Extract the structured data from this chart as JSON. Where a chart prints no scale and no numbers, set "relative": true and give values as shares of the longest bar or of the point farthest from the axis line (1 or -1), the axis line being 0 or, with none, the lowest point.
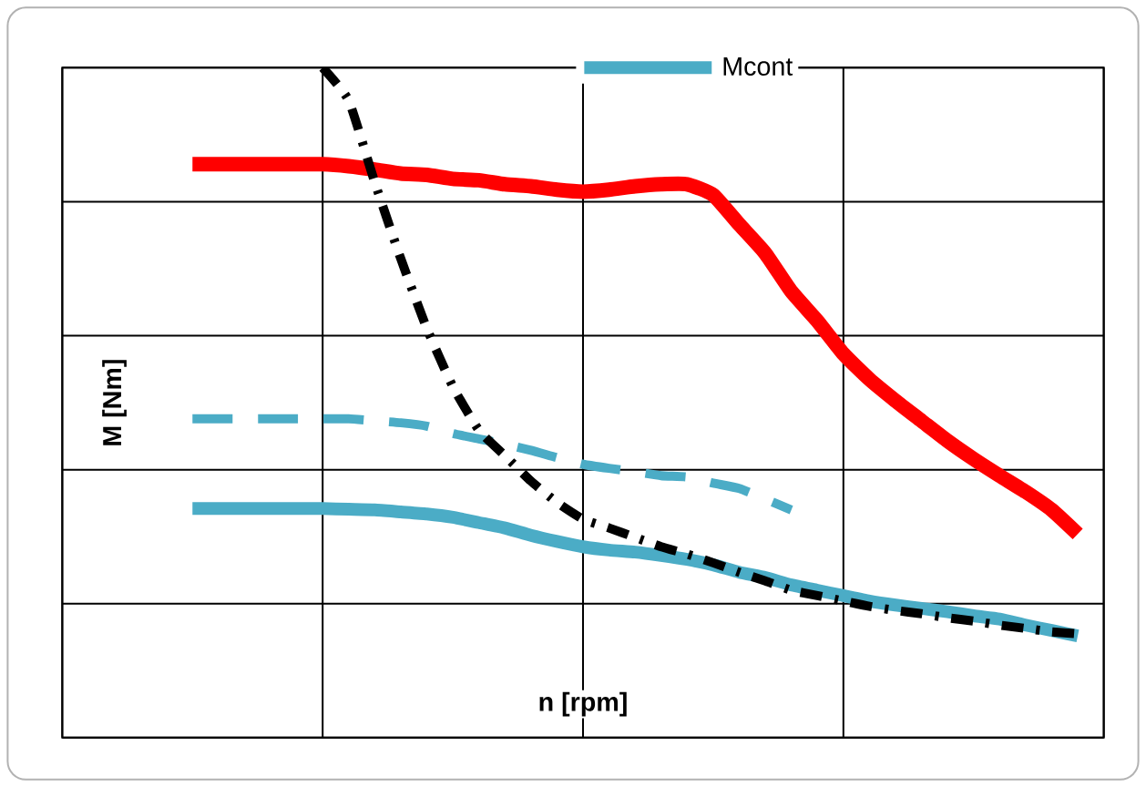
{
  "chart_data": {
    "type": "line",
    "relative": true,
    "xlabel": "n [rpm]",
    "ylabel": "M [Nm]",
    "grid": true,
    "legend": "top",
    "tick_labels": false,
    "categories": [
      null,
      null,
      null,
      null,
      null,
      null,
      null,
      null,
      null,
      null,
      null,
      null,
      null,
      null,
      null,
      null,
      null,
      null,
      null,
      null,
      null,
      null,
      null,
      null,
      null,
      null,
      null,
      null,
      null,
      null,
      null,
      null,
      null,
      null,
      null,
      null,
      null,
      null,
      null,
      null,
      null
    ],
    "series": [
      {
        "color": "#ff0000",
        "line_style": "solid",
        "values": [
          null,
          null,
          null,
          null,
          null,
          0.856,
          0.856,
          0.856,
          0.856,
          0.856,
          0.856,
          0.853,
          0.848,
          0.842,
          0.84,
          0.834,
          0.832,
          0.826,
          0.823,
          0.818,
          0.815,
          0.818,
          0.823,
          0.826,
          0.826,
          0.81,
          0.766,
          0.723,
          0.666,
          0.622,
          0.573,
          0.535,
          0.503,
          0.473,
          0.443,
          0.416,
          0.391,
          0.367,
          0.34,
          0.304,
          null
        ]
      },
      {
        "name": "Mcont",
        "color": "#4bacc6",
        "line_style": "solid",
        "values": [
          null,
          null,
          null,
          null,
          null,
          0.342,
          0.342,
          0.342,
          0.342,
          0.342,
          0.342,
          0.341,
          0.34,
          0.337,
          0.334,
          0.329,
          0.321,
          0.313,
          0.302,
          0.293,
          0.285,
          0.28,
          0.277,
          0.272,
          0.266,
          0.258,
          0.247,
          0.239,
          0.228,
          0.22,
          0.212,
          0.204,
          0.198,
          0.193,
          0.188,
          0.182,
          0.177,
          0.168,
          0.16,
          0.152,
          null
        ]
      },
      {
        "color": "#4bacc6",
        "line_style": "dashed",
        "values": [
          null,
          null,
          null,
          null,
          null,
          0.476,
          0.476,
          0.476,
          0.476,
          0.476,
          0.476,
          0.476,
          0.473,
          0.47,
          0.465,
          0.454,
          0.446,
          0.438,
          0.429,
          0.418,
          0.408,
          0.402,
          0.397,
          0.391,
          0.389,
          0.38,
          0.372,
          0.356,
          0.34,
          null,
          null,
          null,
          null,
          null,
          null,
          null,
          null,
          null,
          null,
          null,
          null
        ]
      },
      {
        "color": "#000000",
        "line_style": "dashdot",
        "values": [
          null,
          null,
          null,
          null,
          null,
          null,
          null,
          null,
          null,
          null,
          1,
          0.951,
          0.829,
          0.715,
          0.611,
          0.524,
          0.459,
          0.421,
          0.383,
          0.351,
          0.326,
          0.313,
          0.299,
          0.285,
          0.274,
          0.261,
          0.247,
          0.234,
          0.22,
          0.212,
          0.204,
          0.196,
          0.19,
          0.185,
          0.179,
          0.174,
          0.168,
          0.163,
          0.158,
          0.155,
          null
        ]
      }
    ]
  }
}
